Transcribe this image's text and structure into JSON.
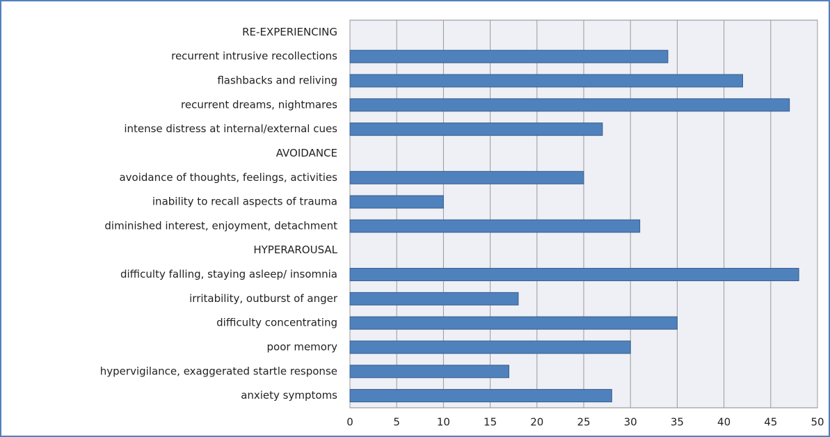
{
  "chart_data": {
    "type": "bar",
    "orientation": "horizontal",
    "categories": [
      "RE-EXPERIENCING",
      "recurrent intrusive recollections",
      "flashbacks and reliving",
      "recurrent dreams, nightmares",
      "intense distress at internal/external cues",
      "AVOIDANCE",
      "avoidance of thoughts, feelings, activities",
      "inability to recall aspects of trauma",
      "diminished interest, enjoyment, detachment",
      "HYPERAROUSAL",
      "difficulty falling, staying asleep/ insomnia",
      "irritability, outburst of anger",
      "difficulty concentrating",
      "poor memory",
      "hypervigilance, exaggerated startle response",
      "anxiety symptoms"
    ],
    "values": [
      null,
      34,
      42,
      47,
      27,
      null,
      25,
      10,
      31,
      null,
      48,
      18,
      35,
      30,
      17,
      28
    ],
    "color": "#4f81bd",
    "xlim": [
      0,
      50
    ],
    "xticks": [
      0,
      5,
      10,
      15,
      20,
      25,
      30,
      35,
      40,
      45,
      50
    ],
    "grid": true
  }
}
